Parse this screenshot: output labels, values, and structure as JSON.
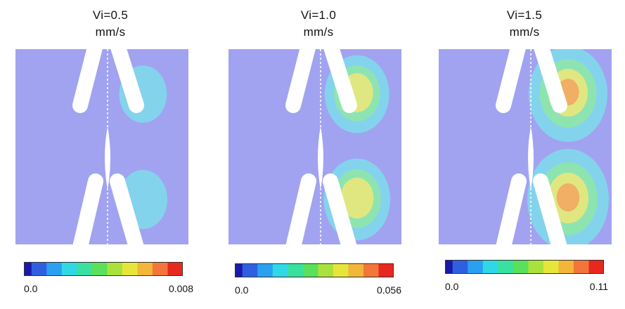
{
  "panels": [
    {
      "title_line1": "Vi=0.5",
      "title_line2": "mm/s",
      "scale_min": "0.0",
      "scale_max": "0.008",
      "hotspot_intensity": 0.35
    },
    {
      "title_line1": "Vi=1.0",
      "title_line2": "mm/s",
      "scale_min": "0.0",
      "scale_max": "0.056",
      "hotspot_intensity": 0.7
    },
    {
      "title_line1": "Vi=1.5",
      "title_line2": "mm/s",
      "scale_min": "0.0",
      "scale_max": "0.11",
      "hotspot_intensity": 1.0
    }
  ],
  "colors": {
    "field_background": "#a1a3f0",
    "strut": "#ffffff",
    "colormap": [
      "#1a1aa8",
      "#2f5fe0",
      "#2aa0f0",
      "#30d8e6",
      "#3ae0a0",
      "#5ae05a",
      "#a8e23a",
      "#e6e63a",
      "#f2b63a",
      "#f2763a",
      "#e8281e"
    ]
  }
}
